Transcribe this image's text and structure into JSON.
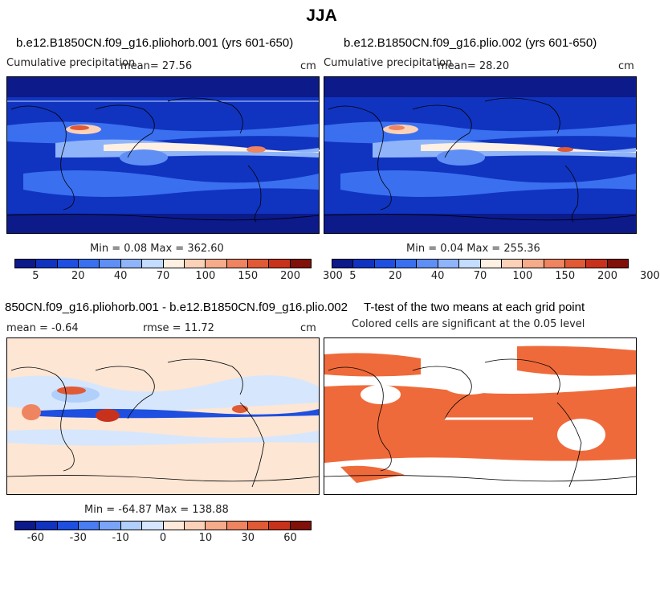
{
  "figure": {
    "title": "JJA"
  },
  "panels": [
    {
      "id": "p1",
      "title": "b.e12.B1850CN.f09_g16.pliohorb.001 (yrs 601-650)",
      "left_label": "Cumulative precipitation",
      "mean_label": "mean=  27.56",
      "units": "cm",
      "stats": "Min =    0.08 Max = 362.60",
      "colorbar": {
        "colors": [
          "#0c1a8a",
          "#1034c0",
          "#1e4fe0",
          "#3a6ff0",
          "#5f8ff5",
          "#8fb4fa",
          "#c4dcfd",
          "#fef0e2",
          "#fbd2b8",
          "#f6ab8a",
          "#ef8460",
          "#e05a36",
          "#c8321c",
          "#801008"
        ],
        "ticks": [
          "5",
          "20",
          "40",
          "70",
          "100",
          "150",
          "200",
          "300"
        ]
      }
    },
    {
      "id": "p2",
      "title": "b.e12.B1850CN.f09_g16.plio.002 (yrs 601-650)",
      "left_label": "Cumulative precipitation",
      "mean_label": "mean=  28.20",
      "units": "cm",
      "stats": "Min =    0.04 Max = 255.36",
      "colorbar": {
        "colors": [
          "#0c1a8a",
          "#1034c0",
          "#1e4fe0",
          "#3a6ff0",
          "#5f8ff5",
          "#8fb4fa",
          "#c4dcfd",
          "#fef0e2",
          "#fbd2b8",
          "#f6ab8a",
          "#ef8460",
          "#e05a36",
          "#c8321c",
          "#801008"
        ],
        "ticks": [
          "5",
          "20",
          "40",
          "70",
          "100",
          "150",
          "200",
          "300"
        ]
      }
    },
    {
      "id": "p3",
      "title": "850CN.f09_g16.pliohorb.001 - b.e12.B1850CN.f09_g16.plio.002",
      "mean_label": "mean =  -0.64",
      "rmse_label": "rmse =  11.72",
      "units": "cm",
      "stats": "Min = -64.87 Max = 138.88",
      "colorbar": {
        "colors": [
          "#0c1a8a",
          "#1034c0",
          "#1e4fe0",
          "#4a7cf2",
          "#7aa4f7",
          "#b0cffb",
          "#d6e7fd",
          "#fdeadb",
          "#fbd2b8",
          "#f6ab8a",
          "#ef8460",
          "#e05a36",
          "#c8321c",
          "#801008"
        ],
        "ticks": [
          "-60",
          "-30",
          "-10",
          "0",
          "10",
          "30",
          "60"
        ]
      }
    },
    {
      "id": "p4",
      "title": "T-test of the two means at each grid point",
      "subtitle": "Colored cells are significant at the 0.05 level"
    }
  ],
  "colors": {
    "map_background_blue": "#1034c0",
    "significance_orange": "#ef6a3a",
    "diff_background": "#fde6d4"
  }
}
